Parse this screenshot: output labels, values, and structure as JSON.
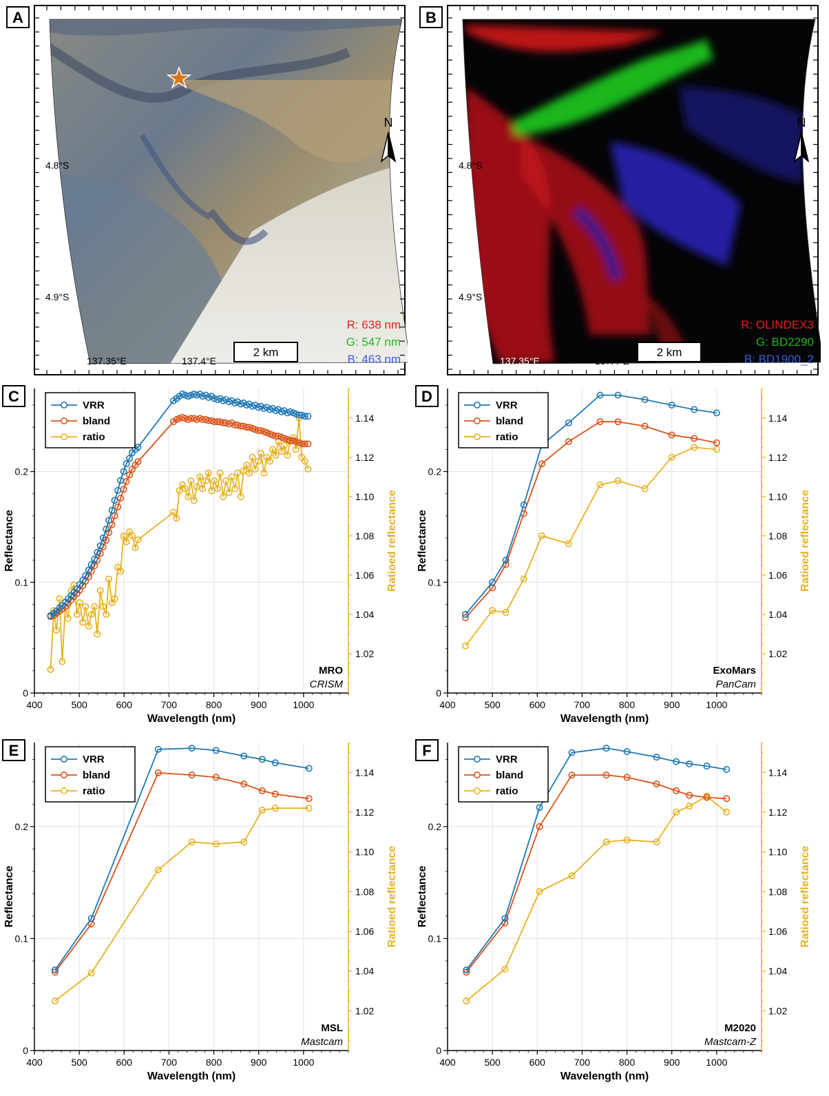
{
  "colors": {
    "vrr": "#1f77b4",
    "bland": "#d95319",
    "ratio": "#e6b120"
  },
  "map_panels": [
    {
      "letter": "A",
      "lat_labels": [
        "4.8°S",
        "4.9°S"
      ],
      "lon_labels": [
        "137.35°E",
        "137.4°E"
      ],
      "scalebar": "2 km",
      "north": "N",
      "channels": [
        {
          "text": "R: 638 nm",
          "color": "#e8201c"
        },
        {
          "text": "G: 547 nm",
          "color": "#22b522"
        },
        {
          "text": "B: 463 nm",
          "color": "#3b5fe0"
        }
      ]
    },
    {
      "letter": "B",
      "lat_labels": [
        "4.8°S",
        "4.9°S"
      ],
      "lon_labels": [
        "137.35°E",
        "137.4°E"
      ],
      "scalebar": "2 km",
      "north": "N",
      "channels": [
        {
          "text": "R: OLINDEX3",
          "color": "#e8201c"
        },
        {
          "text": "G: BD2290",
          "color": "#22b522"
        },
        {
          "text": "B: BD1900_2",
          "color": "#3b5fe0"
        }
      ]
    }
  ],
  "chart_data": [
    {
      "panel": "C",
      "type": "line",
      "mission": "MRO",
      "instrument": "CRISM",
      "xlabel": "Wavelength (nm)",
      "ylabel": "Reflectance",
      "y2label": "Ratioed reflectance",
      "xlim": [
        400,
        1100
      ],
      "ylim": [
        0,
        0.275
      ],
      "y2lim": [
        1.0,
        1.155
      ],
      "xticks": [
        400,
        500,
        600,
        700,
        800,
        900,
        1000
      ],
      "yticks": [
        0,
        0.1,
        0.2
      ],
      "ytick_labels": [
        "0",
        "0.1",
        "0.2"
      ],
      "y2ticks": [
        1.02,
        1.04,
        1.06,
        1.08,
        1.1,
        1.12,
        1.14
      ],
      "y2tick_labels": [
        "1.02",
        "1.04",
        "1.06",
        "1.08",
        "1.10",
        "1.12",
        "1.14"
      ],
      "legend": [
        "VRR",
        "bland",
        "ratio"
      ],
      "series": [
        {
          "name": "VRR",
          "axis": "left",
          "x": [
            436,
            443,
            449,
            456,
            462,
            469,
            475,
            482,
            488,
            495,
            501,
            508,
            514,
            521,
            527,
            534,
            540,
            547,
            553,
            560,
            566,
            573,
            579,
            586,
            592,
            599,
            605,
            612,
            618,
            625,
            631,
            710,
            717,
            723,
            730,
            736,
            743,
            749,
            756,
            762,
            769,
            775,
            782,
            788,
            795,
            801,
            808,
            814,
            821,
            827,
            834,
            840,
            847,
            853,
            860,
            866,
            873,
            879,
            886,
            892,
            899,
            905,
            912,
            918,
            925,
            931,
            938,
            944,
            951,
            957,
            964,
            970,
            977,
            983,
            990,
            996,
            1003,
            1010
          ],
          "y": [
            0.07,
            0.072,
            0.074,
            0.077,
            0.079,
            0.082,
            0.085,
            0.088,
            0.091,
            0.094,
            0.098,
            0.102,
            0.106,
            0.111,
            0.116,
            0.121,
            0.127,
            0.133,
            0.14,
            0.148,
            0.156,
            0.165,
            0.174,
            0.183,
            0.192,
            0.2,
            0.207,
            0.212,
            0.217,
            0.22,
            0.222,
            0.264,
            0.266,
            0.268,
            0.27,
            0.269,
            0.268,
            0.269,
            0.27,
            0.269,
            0.27,
            0.268,
            0.269,
            0.267,
            0.268,
            0.266,
            0.265,
            0.266,
            0.264,
            0.265,
            0.263,
            0.264,
            0.262,
            0.263,
            0.261,
            0.262,
            0.26,
            0.261,
            0.259,
            0.26,
            0.258,
            0.259,
            0.257,
            0.258,
            0.256,
            0.257,
            0.255,
            0.256,
            0.254,
            0.255,
            0.253,
            0.254,
            0.253,
            0.252,
            0.251,
            0.251,
            0.25,
            0.25
          ]
        },
        {
          "name": "bland",
          "axis": "left",
          "x": [
            436,
            443,
            449,
            456,
            462,
            469,
            475,
            482,
            488,
            495,
            501,
            508,
            514,
            521,
            527,
            534,
            540,
            547,
            553,
            560,
            566,
            573,
            579,
            586,
            592,
            599,
            605,
            612,
            618,
            625,
            631,
            710,
            717,
            723,
            730,
            736,
            743,
            749,
            756,
            762,
            769,
            775,
            782,
            788,
            795,
            801,
            808,
            814,
            821,
            827,
            834,
            840,
            847,
            853,
            860,
            866,
            873,
            879,
            886,
            892,
            899,
            905,
            912,
            918,
            925,
            931,
            938,
            944,
            951,
            957,
            964,
            970,
            977,
            983,
            990,
            996,
            1003,
            1010
          ],
          "y": [
            0.069,
            0.07,
            0.072,
            0.074,
            0.076,
            0.078,
            0.081,
            0.084,
            0.087,
            0.09,
            0.093,
            0.097,
            0.101,
            0.105,
            0.11,
            0.115,
            0.12,
            0.126,
            0.132,
            0.138,
            0.145,
            0.152,
            0.16,
            0.168,
            0.176,
            0.184,
            0.191,
            0.197,
            0.202,
            0.206,
            0.209,
            0.245,
            0.247,
            0.248,
            0.249,
            0.248,
            0.247,
            0.248,
            0.248,
            0.247,
            0.248,
            0.247,
            0.247,
            0.246,
            0.246,
            0.245,
            0.245,
            0.245,
            0.244,
            0.244,
            0.243,
            0.244,
            0.242,
            0.242,
            0.241,
            0.241,
            0.24,
            0.24,
            0.239,
            0.238,
            0.237,
            0.237,
            0.236,
            0.235,
            0.234,
            0.233,
            0.232,
            0.232,
            0.231,
            0.23,
            0.229,
            0.228,
            0.228,
            0.227,
            0.226,
            0.225,
            0.225,
            0.225
          ]
        },
        {
          "name": "ratio",
          "axis": "right",
          "x": [
            436,
            443,
            449,
            456,
            462,
            469,
            475,
            482,
            488,
            495,
            501,
            508,
            514,
            521,
            527,
            534,
            540,
            547,
            553,
            560,
            566,
            573,
            579,
            586,
            592,
            599,
            605,
            612,
            618,
            625,
            631,
            710,
            717,
            723,
            730,
            736,
            743,
            749,
            756,
            762,
            769,
            775,
            782,
            788,
            795,
            801,
            808,
            814,
            821,
            827,
            834,
            840,
            847,
            853,
            860,
            866,
            873,
            879,
            886,
            892,
            899,
            905,
            912,
            918,
            925,
            931,
            938,
            944,
            951,
            957,
            964,
            970,
            977,
            983,
            990,
            996,
            1003,
            1010
          ],
          "y": [
            1.012,
            1.042,
            1.032,
            1.048,
            1.016,
            1.044,
            1.038,
            1.052,
            1.055,
            1.04,
            1.046,
            1.036,
            1.044,
            1.034,
            1.04,
            1.044,
            1.03,
            1.052,
            1.044,
            1.04,
            1.058,
            1.046,
            1.048,
            1.064,
            1.062,
            1.08,
            1.077,
            1.082,
            1.08,
            1.074,
            1.078,
            1.092,
            1.089,
            1.103,
            1.106,
            1.104,
            1.1,
            1.108,
            1.098,
            1.105,
            1.11,
            1.104,
            1.108,
            1.112,
            1.103,
            1.108,
            1.104,
            1.112,
            1.1,
            1.108,
            1.102,
            1.11,
            1.104,
            1.112,
            1.1,
            1.113,
            1.116,
            1.112,
            1.12,
            1.114,
            1.118,
            1.122,
            1.112,
            1.12,
            1.118,
            1.124,
            1.121,
            1.128,
            1.123,
            1.126,
            1.121,
            1.128,
            1.13,
            1.124,
            1.14,
            1.12,
            1.118,
            1.114
          ]
        }
      ]
    },
    {
      "panel": "D",
      "type": "line",
      "mission": "ExoMars",
      "instrument": "PanCam",
      "xlabel": "Wavelength (nm)",
      "ylabel": "Reflectance",
      "y2label": "Ratioed reflectance",
      "xlim": [
        400,
        1100
      ],
      "ylim": [
        0,
        0.275
      ],
      "y2lim": [
        1.0,
        1.155
      ],
      "xticks": [
        400,
        500,
        600,
        700,
        800,
        900,
        1000
      ],
      "yticks": [
        0,
        0.1,
        0.2
      ],
      "ytick_labels": [
        "0",
        "0.1",
        "0.2"
      ],
      "y2ticks": [
        1.02,
        1.04,
        1.06,
        1.08,
        1.1,
        1.12,
        1.14
      ],
      "y2tick_labels": [
        "1.02",
        "1.04",
        "1.06",
        "1.08",
        "1.10",
        "1.12",
        "1.14"
      ],
      "legend": [
        "VRR",
        "bland",
        "ratio"
      ],
      "series": [
        {
          "name": "VRR",
          "axis": "left",
          "x": [
            440,
            500,
            530,
            570,
            610,
            670,
            740,
            780,
            840,
            900,
            950,
            1000
          ],
          "y": [
            0.071,
            0.1,
            0.12,
            0.17,
            0.224,
            0.244,
            0.269,
            0.269,
            0.265,
            0.26,
            0.256,
            0.253
          ]
        },
        {
          "name": "bland",
          "axis": "left",
          "x": [
            440,
            500,
            530,
            570,
            610,
            670,
            740,
            780,
            840,
            900,
            950,
            1000
          ],
          "y": [
            0.068,
            0.095,
            0.116,
            0.162,
            0.207,
            0.227,
            0.245,
            0.245,
            0.241,
            0.233,
            0.23,
            0.226
          ]
        },
        {
          "name": "ratio",
          "axis": "right",
          "x": [
            440,
            500,
            530,
            570,
            610,
            670,
            740,
            780,
            840,
            900,
            950,
            1000
          ],
          "y": [
            1.024,
            1.042,
            1.041,
            1.058,
            1.08,
            1.076,
            1.106,
            1.108,
            1.104,
            1.12,
            1.125,
            1.124
          ]
        }
      ]
    },
    {
      "panel": "E",
      "type": "line",
      "mission": "MSL",
      "instrument": "Mastcam",
      "xlabel": "Wavelength (nm)",
      "ylabel": "Reflectance",
      "y2label": "Ratioed reflectance",
      "xlim": [
        400,
        1100
      ],
      "ylim": [
        0,
        0.275
      ],
      "y2lim": [
        1.0,
        1.155
      ],
      "xticks": [
        400,
        500,
        600,
        700,
        800,
        900,
        1000
      ],
      "yticks": [
        0,
        0.1,
        0.2
      ],
      "ytick_labels": [
        "0",
        "0.1",
        "0.2"
      ],
      "y2ticks": [
        1.02,
        1.04,
        1.06,
        1.08,
        1.1,
        1.12,
        1.14
      ],
      "y2tick_labels": [
        "1.02",
        "1.04",
        "1.06",
        "1.08",
        "1.10",
        "1.12",
        "1.14"
      ],
      "legend": [
        "VRR",
        "bland",
        "ratio"
      ],
      "series": [
        {
          "name": "VRR",
          "axis": "left",
          "x": [
            446,
            527,
            676,
            751,
            805,
            867,
            908,
            937,
            1012
          ],
          "y": [
            0.072,
            0.118,
            0.269,
            0.27,
            0.268,
            0.263,
            0.26,
            0.257,
            0.252
          ]
        },
        {
          "name": "bland",
          "axis": "left",
          "x": [
            446,
            527,
            676,
            751,
            805,
            867,
            908,
            937,
            1012
          ],
          "y": [
            0.07,
            0.113,
            0.248,
            0.246,
            0.244,
            0.238,
            0.232,
            0.229,
            0.225
          ]
        },
        {
          "name": "ratio",
          "axis": "right",
          "x": [
            446,
            527,
            676,
            751,
            805,
            867,
            908,
            937,
            1012
          ],
          "y": [
            1.025,
            1.039,
            1.091,
            1.105,
            1.104,
            1.105,
            1.121,
            1.122,
            1.122
          ]
        }
      ]
    },
    {
      "panel": "F",
      "type": "line",
      "mission": "M2020",
      "instrument": "Mastcam-Z",
      "xlabel": "Wavelength (nm)",
      "ylabel": "Reflectance",
      "y2label": "Ratioed reflectance",
      "xlim": [
        400,
        1100
      ],
      "ylim": [
        0,
        0.275
      ],
      "y2lim": [
        1.0,
        1.155
      ],
      "xticks": [
        400,
        500,
        600,
        700,
        800,
        900,
        1000
      ],
      "yticks": [
        0,
        0.1,
        0.2
      ],
      "ytick_labels": [
        "0",
        "0.1",
        "0.2"
      ],
      "y2ticks": [
        1.02,
        1.04,
        1.06,
        1.08,
        1.1,
        1.12,
        1.14
      ],
      "y2tick_labels": [
        "1.02",
        "1.04",
        "1.06",
        "1.08",
        "1.10",
        "1.12",
        "1.14"
      ],
      "legend": [
        "VRR",
        "bland",
        "ratio"
      ],
      "series": [
        {
          "name": "VRR",
          "axis": "left",
          "x": [
            442,
            528,
            605,
            677,
            754,
            800,
            866,
            910,
            939,
            978,
            1022
          ],
          "y": [
            0.072,
            0.118,
            0.217,
            0.266,
            0.27,
            0.267,
            0.262,
            0.258,
            0.256,
            0.254,
            0.251
          ]
        },
        {
          "name": "bland",
          "axis": "left",
          "x": [
            442,
            528,
            605,
            677,
            754,
            800,
            866,
            910,
            939,
            978,
            1022
          ],
          "y": [
            0.07,
            0.114,
            0.2,
            0.246,
            0.246,
            0.244,
            0.238,
            0.232,
            0.228,
            0.226,
            0.225
          ]
        },
        {
          "name": "ratio",
          "axis": "right",
          "x": [
            442,
            528,
            605,
            677,
            754,
            800,
            866,
            910,
            939,
            978,
            1022
          ],
          "y": [
            1.025,
            1.041,
            1.08,
            1.088,
            1.105,
            1.106,
            1.105,
            1.12,
            1.123,
            1.128,
            1.12
          ]
        }
      ]
    }
  ]
}
